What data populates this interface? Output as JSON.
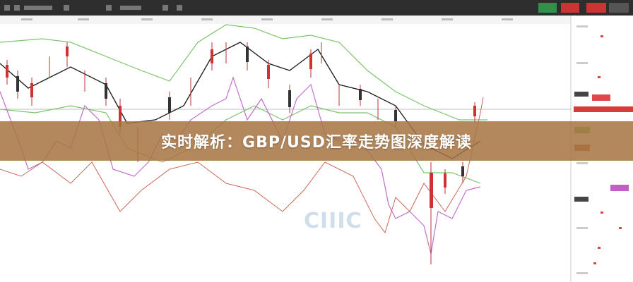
{
  "banner": {
    "title": "实时解析：GBP/USD汇率走势图深度解读"
  },
  "watermark": "CIIIC"
}
